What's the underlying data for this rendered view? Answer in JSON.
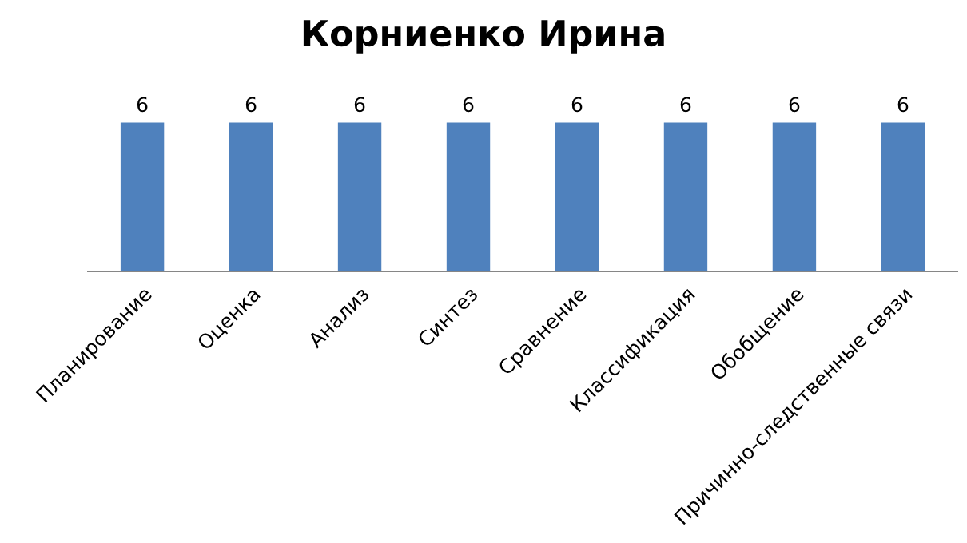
{
  "chart_data": {
    "type": "bar",
    "title": "Корниенко Ирина",
    "categories": [
      "Планирование",
      "Оценка",
      "Анализ",
      "Синтез",
      "Сравнение",
      "Классификация",
      "Обобщение",
      "Причинно-следственные связи"
    ],
    "values": [
      6,
      6,
      6,
      6,
      6,
      6,
      6,
      6
    ],
    "color": "#4f81bd",
    "data_labels": true,
    "tick_labels": "x",
    "grid": false,
    "legend": false
  }
}
